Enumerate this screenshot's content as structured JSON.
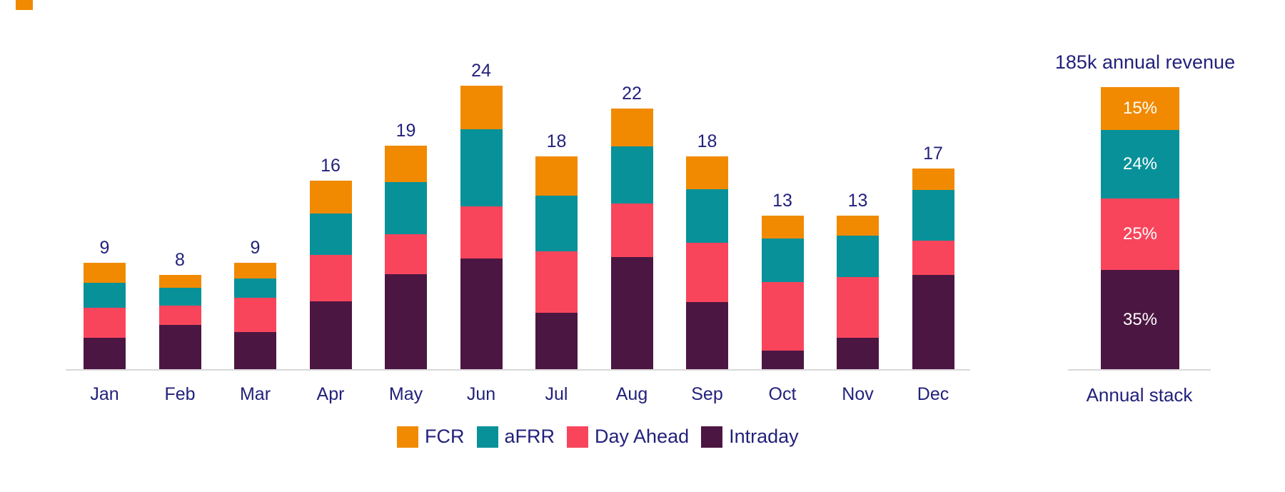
{
  "colors": {
    "fcr_orange": "#F18A00",
    "afrr_teal": "#089199",
    "day_ahead_pink": "#F9455C",
    "intraday_purple": "#4C1642",
    "text_navy": "#23217B",
    "axis_gray": "#D9D9D9",
    "annual_label_white": "#FFFFFF",
    "background": "#FFFFFF",
    "corner_mark": "#F18A00"
  },
  "legend": {
    "items": [
      {
        "label": "FCR",
        "color": "#F18A00"
      },
      {
        "label": "aFRR",
        "color": "#089199"
      },
      {
        "label": "Day Ahead",
        "color": "#F9455C"
      },
      {
        "label": "Intraday",
        "color": "#4C1642"
      }
    ]
  },
  "annual_chart": {
    "title": "185k annual revenue",
    "axis_label": "Annual stack",
    "segments_top_to_bottom": [
      {
        "name": "FCR",
        "label": "15%",
        "pct": 15,
        "color": "#F18A00"
      },
      {
        "name": "aFRR",
        "label": "24%",
        "pct": 24,
        "color": "#089199"
      },
      {
        "name": "Day Ahead",
        "label": "25%",
        "pct": 25,
        "color": "#F9455C"
      },
      {
        "name": "Intraday",
        "label": "35%",
        "pct": 35,
        "color": "#4C1642"
      }
    ]
  },
  "chart_data": [
    {
      "type": "bar",
      "stacked": true,
      "title": "",
      "xlabel": "",
      "ylabel": "",
      "grid": false,
      "legend_position": "bottom",
      "ylim": [
        0,
        26
      ],
      "categories": [
        "Jan",
        "Feb",
        "Mar",
        "Apr",
        "May",
        "Jun",
        "Jul",
        "Aug",
        "Sep",
        "Oct",
        "Nov",
        "Dec"
      ],
      "series": [
        {
          "name": "Intraday",
          "color": "#4C1642",
          "values": [
            2.7,
            3.8,
            3.2,
            5.8,
            8.1,
            9.4,
            4.8,
            9.5,
            5.7,
            1.6,
            2.7,
            8.0
          ]
        },
        {
          "name": "Day Ahead",
          "color": "#F9455C",
          "values": [
            2.5,
            1.6,
            2.9,
            3.9,
            3.4,
            4.4,
            5.2,
            4.5,
            5.0,
            5.8,
            5.1,
            2.9
          ]
        },
        {
          "name": "aFRR",
          "color": "#089199",
          "values": [
            2.1,
            1.5,
            1.6,
            3.5,
            4.4,
            6.5,
            4.7,
            4.8,
            4.5,
            3.7,
            3.5,
            4.3
          ]
        },
        {
          "name": "FCR",
          "color": "#F18A00",
          "values": [
            1.7,
            1.1,
            1.3,
            2.8,
            3.1,
            3.7,
            3.3,
            3.2,
            2.8,
            1.9,
            1.7,
            1.8
          ]
        }
      ],
      "totals": [
        9,
        8,
        9,
        16,
        19,
        24,
        18,
        22,
        18,
        13,
        13,
        17
      ]
    },
    {
      "type": "bar",
      "stacked": true,
      "title": "185k annual revenue",
      "categories": [
        "Annual stack"
      ],
      "unit": "percent",
      "series": [
        {
          "name": "Intraday",
          "color": "#4C1642",
          "values": [
            35
          ]
        },
        {
          "name": "Day Ahead",
          "color": "#F9455C",
          "values": [
            25
          ]
        },
        {
          "name": "aFRR",
          "color": "#089199",
          "values": [
            24
          ]
        },
        {
          "name": "FCR",
          "color": "#F18A00",
          "values": [
            15
          ]
        }
      ],
      "data_labels": [
        "35%",
        "25%",
        "24%",
        "15%"
      ]
    }
  ]
}
